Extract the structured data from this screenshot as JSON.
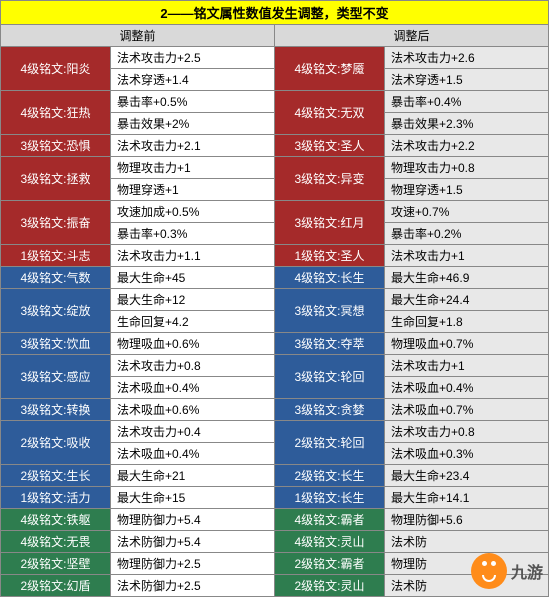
{
  "title": "2——铭文属性数值发生调整，类型不变",
  "headers": {
    "before": "调整前",
    "after": "调整后"
  },
  "colors": {
    "red": "#a52a2a",
    "blue": "#2e5c9a",
    "green": "#2e7d4f",
    "title_bg": "#ffff00",
    "header_bg": "#d9d9d9",
    "right_stat_bg": "#e8e8e8"
  },
  "logo": {
    "text": "九游"
  },
  "rows": [
    {
      "color": "red",
      "left_name": "4级铭文:阳炎",
      "left_stats": [
        "法术攻击力+2.5",
        "法术穿透+1.4"
      ],
      "right_name": "4级铭文:梦魇",
      "right_stats": [
        "法术攻击力+2.6",
        "法术穿透+1.5"
      ]
    },
    {
      "color": "red",
      "left_name": "4级铭文:狂热",
      "left_stats": [
        "暴击率+0.5%",
        "暴击效果+2%"
      ],
      "right_name": "4级铭文:无双",
      "right_stats": [
        "暴击率+0.4%",
        "暴击效果+2.3%"
      ]
    },
    {
      "color": "red",
      "left_name": "3级铭文:恐惧",
      "left_stats": [
        "法术攻击力+2.1"
      ],
      "right_name": "3级铭文:圣人",
      "right_stats": [
        "法术攻击力+2.2"
      ]
    },
    {
      "color": "red",
      "left_name": "3级铭文:拯救",
      "left_stats": [
        "物理攻击力+1",
        "物理穿透+1"
      ],
      "right_name": "3级铭文:异变",
      "right_stats": [
        "物理攻击力+0.8",
        "物理穿透+1.5"
      ]
    },
    {
      "color": "red",
      "left_name": "3级铭文:振奋",
      "left_stats": [
        "攻速加成+0.5%",
        "暴击率+0.3%"
      ],
      "right_name": "3级铭文:红月",
      "right_stats": [
        "攻速+0.7%",
        "暴击率+0.2%"
      ]
    },
    {
      "color": "red",
      "left_name": "1级铭文:斗志",
      "left_stats": [
        "法术攻击力+1.1"
      ],
      "right_name": "1级铭文:圣人",
      "right_stats": [
        "法术攻击力+1"
      ]
    },
    {
      "color": "blue",
      "left_name": "4级铭文:气数",
      "left_stats": [
        "最大生命+45"
      ],
      "right_name": "4级铭文:长生",
      "right_stats": [
        "最大生命+46.9"
      ]
    },
    {
      "color": "blue",
      "left_name": "3级铭文:绽放",
      "left_stats": [
        "最大生命+12",
        "生命回复+4.2"
      ],
      "right_name": "3级铭文:冥想",
      "right_stats": [
        "最大生命+24.4",
        "生命回复+1.8"
      ]
    },
    {
      "color": "blue",
      "left_name": "3级铭文:饮血",
      "left_stats": [
        "物理吸血+0.6%"
      ],
      "right_name": "3级铭文:夺萃",
      "right_stats": [
        "物理吸血+0.7%"
      ]
    },
    {
      "color": "blue",
      "left_name": "3级铭文:感应",
      "left_stats": [
        "法术攻击力+0.8",
        "法术吸血+0.4%"
      ],
      "right_name": "3级铭文:轮回",
      "right_stats": [
        "法术攻击力+1",
        "法术吸血+0.4%"
      ]
    },
    {
      "color": "blue",
      "left_name": "3级铭文:转换",
      "left_stats": [
        "法术吸血+0.6%"
      ],
      "right_name": "3级铭文:贪婪",
      "right_stats": [
        "法术吸血+0.7%"
      ]
    },
    {
      "color": "blue",
      "left_name": "2级铭文:吸收",
      "left_stats": [
        "法术攻击力+0.4",
        "法术吸血+0.4%"
      ],
      "right_name": "2级铭文:轮回",
      "right_stats": [
        "法术攻击力+0.8",
        "法术吸血+0.3%"
      ]
    },
    {
      "color": "blue",
      "left_name": "2级铭文:生长",
      "left_stats": [
        "最大生命+21"
      ],
      "right_name": "2级铭文:长生",
      "right_stats": [
        "最大生命+23.4"
      ]
    },
    {
      "color": "blue",
      "left_name": "1级铭文:活力",
      "left_stats": [
        "最大生命+15"
      ],
      "right_name": "1级铭文:长生",
      "right_stats": [
        "最大生命+14.1"
      ]
    },
    {
      "color": "green",
      "left_name": "4级铭文:铁躯",
      "left_stats": [
        "物理防御力+5.4"
      ],
      "right_name": "4级铭文:霸者",
      "right_stats": [
        "物理防御+5.6"
      ]
    },
    {
      "color": "green",
      "left_name": "4级铭文:无畏",
      "left_stats": [
        "法术防御力+5.4"
      ],
      "right_name": "4级铭文:灵山",
      "right_stats": [
        "法术防"
      ]
    },
    {
      "color": "green",
      "left_name": "2级铭文:坚壁",
      "left_stats": [
        "物理防御力+2.5"
      ],
      "right_name": "2级铭文:霸者",
      "right_stats": [
        "物理防"
      ]
    },
    {
      "color": "green",
      "left_name": "2级铭文:幻盾",
      "left_stats": [
        "法术防御力+2.5"
      ],
      "right_name": "2级铭文:灵山",
      "right_stats": [
        "法术防"
      ]
    }
  ]
}
